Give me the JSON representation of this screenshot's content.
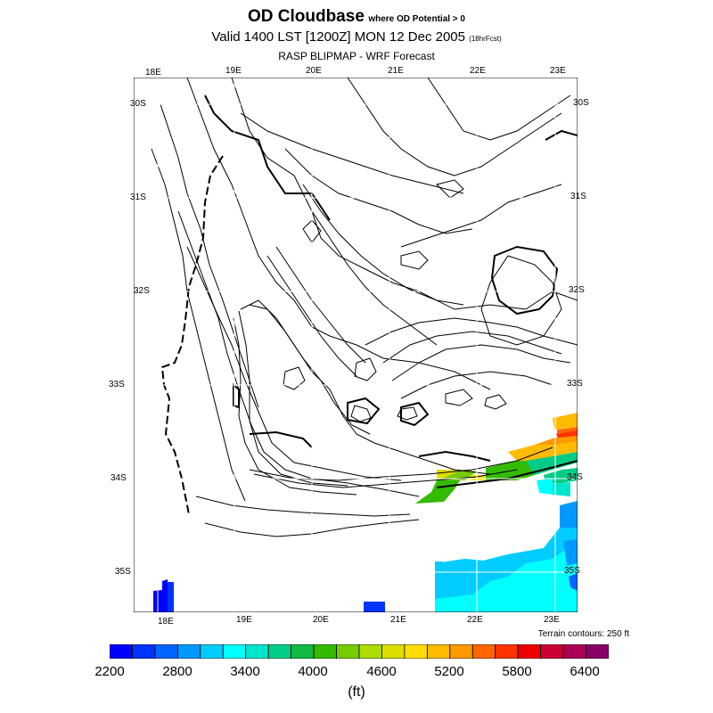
{
  "header": {
    "title": "OD Cloudbase",
    "title_note": "where OD Potential > 0",
    "valid_line": "Valid 1400 LST [1200Z] MON 12 Dec 2005",
    "forecast_note": "(18hrFcst)",
    "source_line": "RASP BLIPMAP - WRF Forecast"
  },
  "map": {
    "top_lon_labels": [
      "18E",
      "19E",
      "20E",
      "21E",
      "22E",
      "23E"
    ],
    "bottom_lon_labels": [
      "18E",
      "19E",
      "20E",
      "21E",
      "22E",
      "23E"
    ],
    "left_lat_labels": [
      "30S",
      "31S",
      "32S",
      "33S",
      "34S",
      "35S"
    ],
    "right_lat_labels": [
      "30S",
      "31S",
      "32S",
      "33S",
      "34S",
      "35S"
    ],
    "terrain_note": "Terrain contours: 250 ft",
    "fill_palette": [
      "#0000ff",
      "#0033ff",
      "#0066ff",
      "#0099ff",
      "#00ccff",
      "#00ffff",
      "#00e6cc",
      "#00cc88",
      "#11bb44",
      "#33bb00",
      "#77cc00",
      "#aadd00",
      "#dddd00",
      "#ffdd00",
      "#ffbb00",
      "#ff9900",
      "#ff6600",
      "#ff3300",
      "#ee0000",
      "#cc0033",
      "#aa0055",
      "#880066"
    ]
  },
  "colorbar": {
    "tick_labels": [
      "2200",
      "2800",
      "3400",
      "4000",
      "4600",
      "5200",
      "5800",
      "6400"
    ],
    "unit": "(ft)",
    "colors": [
      "#0000ff",
      "#0033ff",
      "#0066ff",
      "#0099ff",
      "#00ccff",
      "#00ffff",
      "#00e6cc",
      "#00cc88",
      "#11bb44",
      "#33bb00",
      "#77cc00",
      "#aadd00",
      "#dddd00",
      "#ffdd00",
      "#ffbb00",
      "#ff9900",
      "#ff6600",
      "#ff3300",
      "#ee0000",
      "#cc0033",
      "#aa0055",
      "#880066"
    ]
  }
}
